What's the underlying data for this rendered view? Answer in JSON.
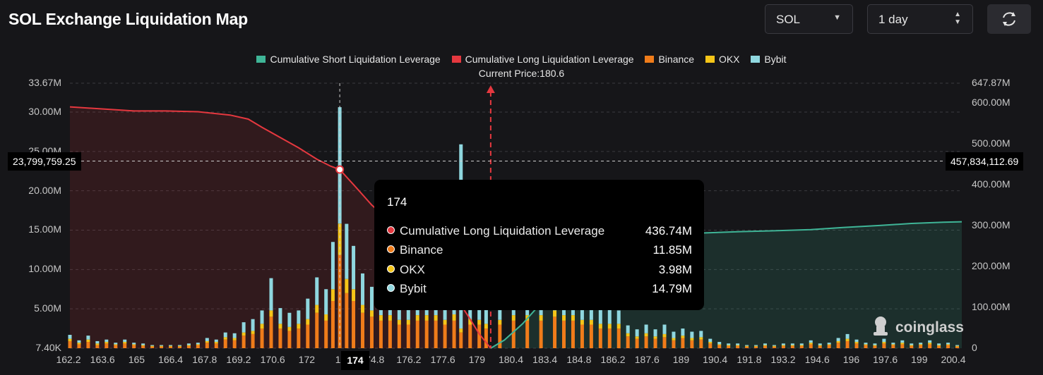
{
  "header": {
    "title": "SOL Exchange Liquidation Map",
    "symbol_select": "SOL",
    "range_select": "1 day",
    "refresh_icon": "refresh-icon",
    "dropdown_icon": "caret-down-icon",
    "spinner_icon": "up-down-spinner-icon"
  },
  "legend": [
    {
      "label": "Cumulative Short Liquidation Leverage",
      "color": "#3fb597"
    },
    {
      "label": "Cumulative Long Liquidation Leverage",
      "color": "#e5383f"
    },
    {
      "label": "Binance",
      "color": "#f07c1a"
    },
    {
      "label": "OKX",
      "color": "#f5c518"
    },
    {
      "label": "Bybit",
      "color": "#8fd7df"
    }
  ],
  "current_price_label": "Current Price:180.6",
  "y_left_ticks": [
    "33.67M",
    "30.00M",
    "25.00M",
    "20.00M",
    "15.00M",
    "10.00M",
    "5.00M",
    "7.40K"
  ],
  "y_right_ticks": [
    "647.87M",
    "600.00M",
    "500.00M",
    "400.00M",
    "300.00M",
    "200.00M",
    "100.00M",
    "0"
  ],
  "x_ticks": [
    "162.2",
    "163.6",
    "165",
    "166.4",
    "167.8",
    "169.2",
    "170.6",
    "172",
    "17",
    "74.8",
    "176.2",
    "177.6",
    "179",
    "180.4",
    "183.4",
    "184.8",
    "186.2",
    "187.6",
    "189",
    "190.4",
    "191.8",
    "193.2",
    "194.6",
    "196",
    "197.6",
    "199",
    "200.4"
  ],
  "crosshair": {
    "x_label": "174",
    "left_value": "23,799,759.25",
    "right_value": "457,834,112.69"
  },
  "tooltip": {
    "title": "174",
    "rows": [
      {
        "label": "Cumulative Long Liquidation Leverage",
        "value": "436.74M",
        "color": "#e5383f"
      },
      {
        "label": "Binance",
        "value": "11.85M",
        "color": "#f07c1a"
      },
      {
        "label": "OKX",
        "value": "3.98M",
        "color": "#f5c518"
      },
      {
        "label": "Bybit",
        "value": "14.79M",
        "color": "#8fd7df"
      }
    ]
  },
  "brand": {
    "label": "coinglass",
    "icon": "coinglass-logo-icon"
  },
  "chart_data": {
    "type": "bar",
    "title": "SOL Exchange Liquidation Map",
    "current_price": 180.6,
    "y_left_range": [
      0.0074,
      33.67
    ],
    "y_right_range": [
      0,
      647.87
    ],
    "y_units": "M",
    "x_range": [
      162.2,
      201.2
    ],
    "stack_order": [
      "Binance",
      "OKX",
      "Bybit"
    ],
    "bar_series": [
      {
        "name": "Binance",
        "color": "#f07c1a"
      },
      {
        "name": "OKX",
        "color": "#f5c518"
      },
      {
        "name": "Bybit",
        "color": "#8fd7df"
      }
    ],
    "bars": [
      {
        "p": 162.2,
        "b": 0.9,
        "o": 0.3,
        "y": 0.5
      },
      {
        "p": 162.6,
        "b": 0.5,
        "o": 0.2,
        "y": 0.3
      },
      {
        "p": 163.0,
        "b": 0.8,
        "o": 0.3,
        "y": 0.5
      },
      {
        "p": 163.4,
        "b": 0.4,
        "o": 0.2,
        "y": 0.3
      },
      {
        "p": 163.8,
        "b": 0.6,
        "o": 0.2,
        "y": 0.3
      },
      {
        "p": 164.2,
        "b": 0.4,
        "o": 0.1,
        "y": 0.2
      },
      {
        "p": 164.6,
        "b": 0.6,
        "o": 0.2,
        "y": 0.3
      },
      {
        "p": 165.0,
        "b": 0.4,
        "o": 0.1,
        "y": 0.2
      },
      {
        "p": 165.4,
        "b": 0.3,
        "o": 0.1,
        "y": 0.2
      },
      {
        "p": 165.8,
        "b": 0.2,
        "o": 0.1,
        "y": 0.1
      },
      {
        "p": 166.2,
        "b": 0.2,
        "o": 0.1,
        "y": 0.1
      },
      {
        "p": 166.6,
        "b": 0.2,
        "o": 0.1,
        "y": 0.1
      },
      {
        "p": 167.0,
        "b": 0.2,
        "o": 0.1,
        "y": 0.1
      },
      {
        "p": 167.4,
        "b": 0.3,
        "o": 0.1,
        "y": 0.2
      },
      {
        "p": 167.8,
        "b": 0.4,
        "o": 0.1,
        "y": 0.2
      },
      {
        "p": 168.2,
        "b": 0.7,
        "o": 0.2,
        "y": 0.4
      },
      {
        "p": 168.6,
        "b": 0.6,
        "o": 0.2,
        "y": 0.3
      },
      {
        "p": 169.0,
        "b": 1.1,
        "o": 0.3,
        "y": 0.6
      },
      {
        "p": 169.4,
        "b": 1.0,
        "o": 0.3,
        "y": 0.6
      },
      {
        "p": 169.8,
        "b": 1.6,
        "o": 0.4,
        "y": 1.3
      },
      {
        "p": 170.2,
        "b": 1.8,
        "o": 0.4,
        "y": 1.5
      },
      {
        "p": 170.6,
        "b": 2.5,
        "o": 0.6,
        "y": 1.7
      },
      {
        "p": 171.0,
        "b": 4.0,
        "o": 0.8,
        "y": 4.1
      },
      {
        "p": 171.4,
        "b": 2.5,
        "o": 0.6,
        "y": 2.0
      },
      {
        "p": 171.8,
        "b": 2.2,
        "o": 0.5,
        "y": 1.8
      },
      {
        "p": 172.2,
        "b": 2.5,
        "o": 0.6,
        "y": 1.7
      },
      {
        "p": 172.6,
        "b": 3.0,
        "o": 0.7,
        "y": 2.6
      },
      {
        "p": 173.0,
        "b": 4.5,
        "o": 1.0,
        "y": 3.5
      },
      {
        "p": 173.4,
        "b": 3.5,
        "o": 0.8,
        "y": 3.2
      },
      {
        "p": 173.7,
        "b": 6.0,
        "o": 1.5,
        "y": 6.0
      },
      {
        "p": 174.0,
        "b": 11.85,
        "o": 3.98,
        "y": 14.79
      },
      {
        "p": 174.3,
        "b": 7.0,
        "o": 1.8,
        "y": 7.0
      },
      {
        "p": 174.6,
        "b": 6.0,
        "o": 1.5,
        "y": 5.5
      },
      {
        "p": 175.0,
        "b": 4.5,
        "o": 1.0,
        "y": 4.0
      },
      {
        "p": 175.4,
        "b": 4.0,
        "o": 0.8,
        "y": 3.0
      },
      {
        "p": 175.8,
        "b": 3.5,
        "o": 0.7,
        "y": 2.5
      },
      {
        "p": 176.2,
        "b": 3.5,
        "o": 0.7,
        "y": 2.2
      },
      {
        "p": 176.6,
        "b": 3.0,
        "o": 0.6,
        "y": 2.0
      },
      {
        "p": 177.0,
        "b": 3.0,
        "o": 0.6,
        "y": 2.0
      },
      {
        "p": 177.4,
        "b": 3.5,
        "o": 0.7,
        "y": 2.2
      },
      {
        "p": 177.8,
        "b": 3.5,
        "o": 0.7,
        "y": 2.3
      },
      {
        "p": 178.2,
        "b": 3.5,
        "o": 0.7,
        "y": 2.2
      },
      {
        "p": 178.6,
        "b": 3.0,
        "o": 0.6,
        "y": 2.0
      },
      {
        "p": 179.0,
        "b": 3.5,
        "o": 0.8,
        "y": 2.5
      },
      {
        "p": 179.3,
        "b": 2.0,
        "o": 0.5,
        "y": 23.4
      },
      {
        "p": 179.7,
        "b": 3.0,
        "o": 0.7,
        "y": 2.5
      },
      {
        "p": 180.1,
        "b": 3.0,
        "o": 0.6,
        "y": 2.2
      },
      {
        "p": 180.4,
        "b": 2.5,
        "o": 0.6,
        "y": 2.0
      },
      {
        "p": 181.0,
        "b": 3.0,
        "o": 0.6,
        "y": 2.5
      },
      {
        "p": 181.6,
        "b": 3.5,
        "o": 0.7,
        "y": 2.5
      },
      {
        "p": 182.2,
        "b": 3.5,
        "o": 0.7,
        "y": 2.8
      },
      {
        "p": 182.8,
        "b": 3.5,
        "o": 0.7,
        "y": 2.5
      },
      {
        "p": 183.4,
        "b": 4.0,
        "o": 0.8,
        "y": 3.0
      },
      {
        "p": 183.8,
        "b": 3.5,
        "o": 0.7,
        "y": 2.6
      },
      {
        "p": 184.2,
        "b": 3.5,
        "o": 0.7,
        "y": 2.5
      },
      {
        "p": 184.6,
        "b": 3.0,
        "o": 0.6,
        "y": 2.2
      },
      {
        "p": 185.0,
        "b": 3.0,
        "o": 0.6,
        "y": 2.2
      },
      {
        "p": 185.4,
        "b": 2.5,
        "o": 0.6,
        "y": 1.8
      },
      {
        "p": 185.8,
        "b": 2.5,
        "o": 0.6,
        "y": 1.8
      },
      {
        "p": 186.2,
        "b": 2.5,
        "o": 0.6,
        "y": 1.7
      },
      {
        "p": 186.6,
        "b": 1.5,
        "o": 0.4,
        "y": 1.0
      },
      {
        "p": 187.0,
        "b": 1.2,
        "o": 0.3,
        "y": 0.9
      },
      {
        "p": 187.4,
        "b": 1.5,
        "o": 0.4,
        "y": 1.1
      },
      {
        "p": 187.8,
        "b": 1.2,
        "o": 0.3,
        "y": 0.9
      },
      {
        "p": 188.2,
        "b": 1.4,
        "o": 0.4,
        "y": 1.2
      },
      {
        "p": 188.6,
        "b": 1.0,
        "o": 0.3,
        "y": 0.8
      },
      {
        "p": 189.0,
        "b": 1.3,
        "o": 0.3,
        "y": 0.9
      },
      {
        "p": 189.4,
        "b": 1.0,
        "o": 0.3,
        "y": 0.8
      },
      {
        "p": 189.8,
        "b": 1.1,
        "o": 0.3,
        "y": 0.8
      },
      {
        "p": 190.2,
        "b": 0.6,
        "o": 0.2,
        "y": 0.4
      },
      {
        "p": 190.6,
        "b": 0.4,
        "o": 0.1,
        "y": 0.3
      },
      {
        "p": 191.0,
        "b": 0.3,
        "o": 0.1,
        "y": 0.2
      },
      {
        "p": 191.4,
        "b": 0.3,
        "o": 0.1,
        "y": 0.2
      },
      {
        "p": 191.8,
        "b": 0.2,
        "o": 0.1,
        "y": 0.1
      },
      {
        "p": 192.2,
        "b": 0.2,
        "o": 0.1,
        "y": 0.1
      },
      {
        "p": 192.6,
        "b": 0.3,
        "o": 0.1,
        "y": 0.2
      },
      {
        "p": 193.0,
        "b": 0.2,
        "o": 0.1,
        "y": 0.1
      },
      {
        "p": 193.4,
        "b": 0.3,
        "o": 0.1,
        "y": 0.2
      },
      {
        "p": 193.8,
        "b": 0.3,
        "o": 0.1,
        "y": 0.2
      },
      {
        "p": 194.2,
        "b": 0.3,
        "o": 0.1,
        "y": 0.2
      },
      {
        "p": 194.6,
        "b": 0.5,
        "o": 0.2,
        "y": 0.3
      },
      {
        "p": 195.0,
        "b": 0.3,
        "o": 0.1,
        "y": 0.2
      },
      {
        "p": 195.4,
        "b": 0.4,
        "o": 0.1,
        "y": 0.2
      },
      {
        "p": 195.8,
        "b": 0.7,
        "o": 0.2,
        "y": 0.4
      },
      {
        "p": 196.2,
        "b": 0.9,
        "o": 0.3,
        "y": 0.6
      },
      {
        "p": 196.6,
        "b": 0.6,
        "o": 0.2,
        "y": 0.3
      },
      {
        "p": 197.0,
        "b": 0.4,
        "o": 0.1,
        "y": 0.2
      },
      {
        "p": 197.4,
        "b": 0.3,
        "o": 0.1,
        "y": 0.2
      },
      {
        "p": 197.8,
        "b": 0.6,
        "o": 0.2,
        "y": 0.4
      },
      {
        "p": 198.2,
        "b": 0.4,
        "o": 0.1,
        "y": 0.2
      },
      {
        "p": 198.6,
        "b": 0.5,
        "o": 0.2,
        "y": 0.3
      },
      {
        "p": 199.0,
        "b": 0.3,
        "o": 0.1,
        "y": 0.2
      },
      {
        "p": 199.4,
        "b": 0.4,
        "o": 0.1,
        "y": 0.2
      },
      {
        "p": 199.8,
        "b": 0.5,
        "o": 0.2,
        "y": 0.3
      },
      {
        "p": 200.2,
        "b": 0.3,
        "o": 0.1,
        "y": 0.2
      },
      {
        "p": 200.6,
        "b": 0.4,
        "o": 0.1,
        "y": 0.2
      },
      {
        "p": 201.0,
        "b": 0.2,
        "o": 0.1,
        "y": 0.1
      }
    ],
    "long_series": {
      "name": "Cumulative Long Liquidation Leverage",
      "color": "#e5383f",
      "points": [
        [
          162.2,
          590
        ],
        [
          163.6,
          585
        ],
        [
          165,
          580
        ],
        [
          166.4,
          580
        ],
        [
          167.8,
          578
        ],
        [
          169.2,
          570
        ],
        [
          170.0,
          560
        ],
        [
          170.6,
          540
        ],
        [
          171.4,
          515
        ],
        [
          172.2,
          490
        ],
        [
          173.0,
          462
        ],
        [
          173.6,
          445
        ],
        [
          174.0,
          436.74
        ],
        [
          174.6,
          400
        ],
        [
          175.4,
          350
        ],
        [
          176.2,
          310
        ],
        [
          177.0,
          270
        ],
        [
          177.6,
          235
        ],
        [
          178.4,
          180
        ],
        [
          179.0,
          130
        ],
        [
          179.6,
          80
        ],
        [
          180.1,
          35
        ],
        [
          180.6,
          0
        ]
      ]
    },
    "short_series": {
      "name": "Cumulative Short Liquidation Leverage",
      "color": "#3fb597",
      "points": [
        [
          180.6,
          0
        ],
        [
          181.2,
          20
        ],
        [
          182.0,
          60
        ],
        [
          182.8,
          110
        ],
        [
          183.6,
          160
        ],
        [
          184.4,
          205
        ],
        [
          185.2,
          240
        ],
        [
          186.0,
          262
        ],
        [
          187.0,
          275
        ],
        [
          188.5,
          280
        ],
        [
          190.0,
          282
        ],
        [
          191.5,
          285
        ],
        [
          193.0,
          287
        ],
        [
          194.6,
          290
        ],
        [
          196.0,
          295
        ],
        [
          197.6,
          300
        ],
        [
          199.0,
          305
        ],
        [
          200.4,
          308
        ],
        [
          201.2,
          309
        ]
      ]
    }
  }
}
